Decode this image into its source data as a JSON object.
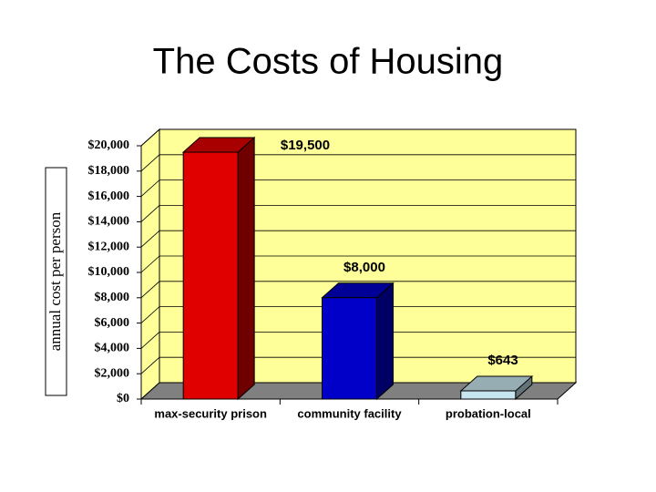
{
  "chart_data": {
    "type": "bar3d",
    "title": "The Costs of Housing",
    "y_label": "annual cost per person",
    "categories": [
      "max-security prison",
      "community facility",
      "probation-local"
    ],
    "values": [
      19500,
      8000,
      643
    ],
    "value_labels": [
      "$19,500",
      "$8,000",
      "$643"
    ],
    "colors": [
      "#e00000",
      "#0000c8",
      "#c8e6f0"
    ],
    "ylim": [
      0,
      20000
    ],
    "yticks": [
      {
        "value": 0,
        "label": "$0"
      },
      {
        "value": 2000,
        "label": "$2,000"
      },
      {
        "value": 4000,
        "label": "$4,000"
      },
      {
        "value": 6000,
        "label": "$6,000"
      },
      {
        "value": 8000,
        "label": "$8,000"
      },
      {
        "value": 10000,
        "label": "$10,000"
      },
      {
        "value": 12000,
        "label": "$12,000"
      },
      {
        "value": 14000,
        "label": "$14,000"
      },
      {
        "value": 16000,
        "label": "$16,000"
      },
      {
        "value": 18000,
        "label": "$18,000"
      },
      {
        "value": 20000,
        "label": "$20,000"
      }
    ],
    "grid": true
  }
}
